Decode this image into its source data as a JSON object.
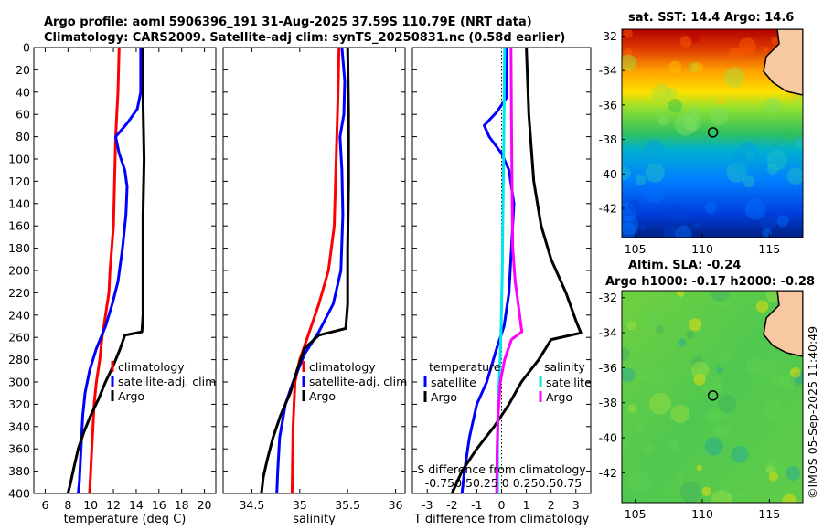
{
  "header": {
    "line1": "Argo profile: aoml 5906396_191 31-Aug-2025 37.59S 110.79E (NRT data)",
    "line2": "Climatology: CARS2009. Satellite-adj clim: synTS_20250831.nc (0.58d earlier)"
  },
  "copyright": "©IMOS 05-Sep-2025 11:40:49",
  "colors": {
    "climatology": "#ff0000",
    "satellite": "#0000ff",
    "argo": "#000000",
    "sat_salinity": "#00e5ee",
    "argo_salinity": "#ff00ff"
  },
  "depth_ticks": [
    0,
    20,
    40,
    60,
    80,
    100,
    120,
    140,
    160,
    180,
    200,
    220,
    240,
    260,
    280,
    300,
    320,
    340,
    360,
    380,
    400
  ],
  "chart_data": [
    {
      "type": "line",
      "id": "temperature",
      "xlabel": "temperature (deg C)",
      "ylabel": "depth",
      "xlim": [
        5,
        21
      ],
      "ylim": [
        0,
        400
      ],
      "xticks": [
        6,
        8,
        10,
        12,
        14,
        16,
        18,
        20
      ],
      "legend": [
        "climatology",
        "satellite-adj. clim",
        "Argo"
      ],
      "series": [
        {
          "name": "climatology",
          "color": "#ff0000",
          "points": [
            [
              12.5,
              0
            ],
            [
              12.4,
              40
            ],
            [
              12.2,
              80
            ],
            [
              12.1,
              120
            ],
            [
              12.0,
              160
            ],
            [
              11.7,
              200
            ],
            [
              11.6,
              220
            ],
            [
              11.3,
              240
            ],
            [
              11.0,
              260
            ],
            [
              10.8,
              280
            ],
            [
              10.5,
              300
            ],
            [
              10.3,
              320
            ],
            [
              10.2,
              340
            ],
            [
              10.1,
              360
            ],
            [
              10.0,
              380
            ],
            [
              9.9,
              400
            ]
          ]
        },
        {
          "name": "satellite-adj. clim",
          "color": "#0000ff",
          "points": [
            [
              14.4,
              0
            ],
            [
              14.4,
              40
            ],
            [
              14.1,
              55
            ],
            [
              13.2,
              68
            ],
            [
              12.2,
              80
            ],
            [
              12.5,
              95
            ],
            [
              13.0,
              110
            ],
            [
              13.2,
              125
            ],
            [
              13.1,
              150
            ],
            [
              12.8,
              180
            ],
            [
              12.4,
              210
            ],
            [
              11.9,
              230
            ],
            [
              11.3,
              250
            ],
            [
              10.5,
              270
            ],
            [
              9.9,
              290
            ],
            [
              9.5,
              310
            ],
            [
              9.3,
              330
            ],
            [
              9.2,
              350
            ],
            [
              9.1,
              370
            ],
            [
              9.0,
              390
            ],
            [
              8.9,
              400
            ]
          ]
        },
        {
          "name": "Argo",
          "color": "#000000",
          "points": [
            [
              14.6,
              0
            ],
            [
              14.6,
              50
            ],
            [
              14.7,
              100
            ],
            [
              14.6,
              150
            ],
            [
              14.6,
              200
            ],
            [
              14.6,
              240
            ],
            [
              14.5,
              255
            ],
            [
              13.0,
              258
            ],
            [
              12.6,
              270
            ],
            [
              12.0,
              285
            ],
            [
              11.3,
              300
            ],
            [
              10.7,
              315
            ],
            [
              10.0,
              330
            ],
            [
              9.4,
              345
            ],
            [
              8.9,
              360
            ],
            [
              8.5,
              378
            ],
            [
              8.2,
              392
            ],
            [
              8.0,
              400
            ]
          ]
        }
      ]
    },
    {
      "type": "line",
      "id": "salinity",
      "xlabel": "salinity",
      "ylabel": "depth",
      "xlim": [
        34.2,
        36.1
      ],
      "ylim": [
        0,
        400
      ],
      "xticks": [
        34.5,
        35,
        35.5,
        36
      ],
      "xtick_labels": [
        "34.5",
        "35",
        "35.5",
        "36"
      ],
      "legend": [
        "climatology",
        "satellite-adj. clim",
        "Argo"
      ],
      "series": [
        {
          "name": "climatology",
          "color": "#ff0000",
          "points": [
            [
              35.41,
              0
            ],
            [
              35.4,
              40
            ],
            [
              35.38,
              100
            ],
            [
              35.36,
              160
            ],
            [
              35.3,
              200
            ],
            [
              35.2,
              230
            ],
            [
              35.1,
              255
            ],
            [
              35.0,
              280
            ],
            [
              34.95,
              300
            ],
            [
              34.93,
              340
            ],
            [
              34.92,
              400
            ]
          ]
        },
        {
          "name": "satellite-adj. clim",
          "color": "#0000ff",
          "points": [
            [
              35.44,
              0
            ],
            [
              35.47,
              30
            ],
            [
              35.46,
              60
            ],
            [
              35.42,
              80
            ],
            [
              35.44,
              110
            ],
            [
              35.45,
              150
            ],
            [
              35.43,
              200
            ],
            [
              35.35,
              230
            ],
            [
              35.2,
              255
            ],
            [
              35.05,
              275
            ],
            [
              34.93,
              300
            ],
            [
              34.85,
              320
            ],
            [
              34.79,
              350
            ],
            [
              34.77,
              380
            ],
            [
              34.76,
              400
            ]
          ]
        },
        {
          "name": "Argo",
          "color": "#000000",
          "points": [
            [
              35.5,
              0
            ],
            [
              35.51,
              60
            ],
            [
              35.51,
              120
            ],
            [
              35.5,
              180
            ],
            [
              35.5,
              230
            ],
            [
              35.48,
              252
            ],
            [
              35.2,
              258
            ],
            [
              35.05,
              270
            ],
            [
              34.97,
              290
            ],
            [
              34.9,
              310
            ],
            [
              34.8,
              330
            ],
            [
              34.72,
              350
            ],
            [
              34.66,
              370
            ],
            [
              34.62,
              385
            ],
            [
              34.6,
              400
            ]
          ]
        }
      ]
    },
    {
      "type": "line",
      "id": "difference",
      "xlabel": "T difference from climatology",
      "xlabel_top": "S difference from climatology",
      "ylabel": "depth",
      "xlim": [
        -3.6,
        3.6
      ],
      "ylim": [
        0,
        400
      ],
      "xticks": [
        -3,
        -2,
        -1,
        0,
        1,
        2,
        3
      ],
      "top_ticks": [
        -0.75,
        -0.5,
        -0.25,
        0,
        0.25,
        0.5,
        0.75
      ],
      "top_tick_labels": "-0.750.50.25 0  0.250.50.75",
      "legend_temperature_title": "temperature",
      "legend_salinity_title": "salinity",
      "legend_temperature": [
        "satellite",
        "Argo"
      ],
      "legend_salinity": [
        "satellite",
        "Argo"
      ],
      "series": [
        {
          "name": "T satellite",
          "color": "#0000ff",
          "points": [
            [
              0.2,
              0
            ],
            [
              0.2,
              45
            ],
            [
              -0.2,
              58
            ],
            [
              -0.7,
              70
            ],
            [
              -0.5,
              80
            ],
            [
              0.0,
              95
            ],
            [
              0.3,
              110
            ],
            [
              0.5,
              140
            ],
            [
              0.4,
              180
            ],
            [
              0.3,
              220
            ],
            [
              0.1,
              250
            ],
            [
              -0.2,
              270
            ],
            [
              -0.6,
              300
            ],
            [
              -1.0,
              320
            ],
            [
              -1.3,
              350
            ],
            [
              -1.5,
              380
            ],
            [
              -1.6,
              400
            ]
          ]
        },
        {
          "name": "T Argo",
          "color": "#000000",
          "points": [
            [
              1.0,
              0
            ],
            [
              1.1,
              60
            ],
            [
              1.3,
              120
            ],
            [
              1.6,
              160
            ],
            [
              2.0,
              190
            ],
            [
              2.6,
              220
            ],
            [
              3.0,
              245
            ],
            [
              3.2,
              256
            ],
            [
              2.0,
              262
            ],
            [
              1.5,
              280
            ],
            [
              0.8,
              300
            ],
            [
              0.3,
              320
            ],
            [
              -0.3,
              340
            ],
            [
              -1.0,
              360
            ],
            [
              -1.6,
              380
            ],
            [
              -2.0,
              400
            ]
          ]
        },
        {
          "name": "S satellite",
          "color": "#00e5ee",
          "points": [
            [
              0.12,
              0
            ],
            [
              0.1,
              60
            ],
            [
              0.06,
              140
            ],
            [
              0.03,
              200
            ],
            [
              -0.02,
              250
            ],
            [
              -0.05,
              275
            ],
            [
              -0.1,
              300
            ],
            [
              -0.15,
              330
            ],
            [
              -0.16,
              360
            ],
            [
              -0.16,
              400
            ]
          ]
        },
        {
          "name": "S Argo",
          "color": "#ff00ff",
          "points": [
            [
              0.38,
              0
            ],
            [
              0.4,
              60
            ],
            [
              0.42,
              120
            ],
            [
              0.45,
              180
            ],
            [
              0.55,
              210
            ],
            [
              0.7,
              235
            ],
            [
              0.82,
              255
            ],
            [
              0.4,
              262
            ],
            [
              0.12,
              280
            ],
            [
              -0.05,
              300
            ],
            [
              -0.14,
              330
            ],
            [
              -0.18,
              360
            ],
            [
              -0.2,
              400
            ]
          ]
        }
      ]
    },
    {
      "type": "heatmap",
      "id": "sst_map",
      "title": "sat. SST: 14.4 Argo: 14.6",
      "xlim": [
        104,
        117.5
      ],
      "ylim": [
        -43.7,
        -31.6
      ],
      "xticks": [
        105,
        110,
        115
      ],
      "yticks": [
        -32,
        -34,
        -36,
        -38,
        -40,
        -42
      ],
      "marker": [
        110.79,
        -37.59
      ]
    },
    {
      "type": "heatmap",
      "id": "sla_map",
      "title": "Altim. SLA: -0.24",
      "title2": "Argo h1000: -0.17 h2000: -0.28",
      "xlim": [
        104,
        117.5
      ],
      "ylim": [
        -43.7,
        -31.6
      ],
      "xticks": [
        105,
        110,
        115
      ],
      "yticks": [
        -32,
        -34,
        -36,
        -38,
        -40,
        -42
      ],
      "marker": [
        110.79,
        -37.59
      ]
    }
  ]
}
